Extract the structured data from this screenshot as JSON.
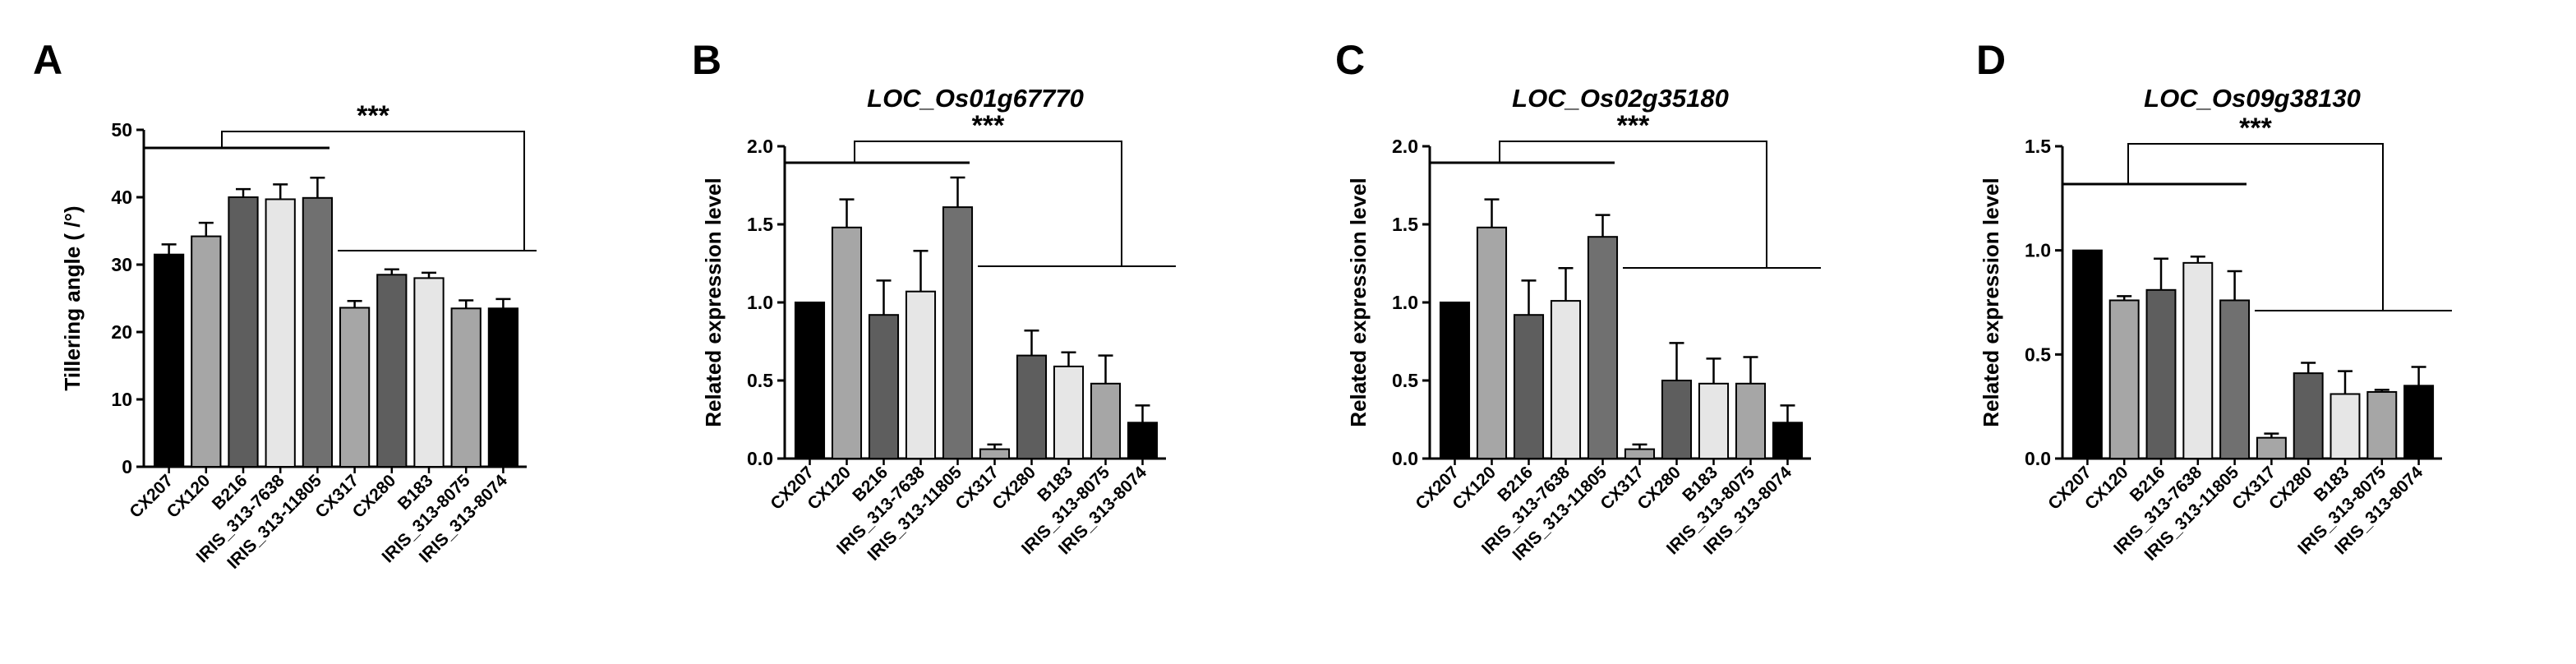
{
  "chart_data": [
    {
      "panel": "A",
      "type": "bar",
      "title": "",
      "xlabel": "",
      "ylabel": "Tillering angle ( /°)",
      "ylim": [
        0,
        50
      ],
      "yticks": [
        0,
        10,
        20,
        30,
        40,
        50
      ],
      "categories": [
        "CX207",
        "CX120",
        "B216",
        "IRIS_313-7638",
        "IRIS_313-11805",
        "CX317",
        "CX280",
        "B183",
        "IRIS_313-8075",
        "IRIS_313-8074"
      ],
      "values": [
        31.5,
        34.2,
        40.0,
        39.7,
        39.9,
        23.6,
        28.5,
        28.0,
        23.5,
        23.5
      ],
      "errors": [
        1.5,
        2.0,
        1.2,
        2.2,
        3.0,
        1.0,
        0.8,
        0.8,
        1.2,
        1.4
      ],
      "colors": [
        "#000000",
        "#a6a6a6",
        "#5e5e5e",
        "#e6e6e6",
        "#707070",
        "#a6a6a6",
        "#5e5e5e",
        "#e6e6e6",
        "#a6a6a6",
        "#000000"
      ],
      "significance": "***"
    },
    {
      "panel": "B",
      "type": "bar",
      "title": "LOC_Os01g67770",
      "xlabel": "",
      "ylabel": "Related expression level",
      "ylim": [
        0,
        2.0
      ],
      "yticks": [
        "0.0",
        "0.5",
        "1.0",
        "1.5",
        "2.0"
      ],
      "categories": [
        "CX207",
        "CX120",
        "B216",
        "IRIS_313-7638",
        "IRIS_313-11805",
        "CX317",
        "CX280",
        "B183",
        "IRIS_313-8075",
        "IRIS_313-8074"
      ],
      "values": [
        1.0,
        1.48,
        0.92,
        1.07,
        1.61,
        0.06,
        0.66,
        0.59,
        0.48,
        0.23
      ],
      "errors": [
        0.0,
        0.18,
        0.22,
        0.26,
        0.19,
        0.03,
        0.16,
        0.09,
        0.18,
        0.11
      ],
      "colors": [
        "#000000",
        "#a6a6a6",
        "#5e5e5e",
        "#e6e6e6",
        "#707070",
        "#a6a6a6",
        "#5e5e5e",
        "#e6e6e6",
        "#a6a6a6",
        "#000000"
      ],
      "significance": "***"
    },
    {
      "panel": "C",
      "type": "bar",
      "title": "LOC_Os02g35180",
      "xlabel": "",
      "ylabel": "Related expression level",
      "ylim": [
        0,
        2.0
      ],
      "yticks": [
        "0.0",
        "0.5",
        "1.0",
        "1.5",
        "2.0"
      ],
      "categories": [
        "CX207",
        "CX120",
        "B216",
        "IRIS_313-7638",
        "IRIS_313-11805",
        "CX317",
        "CX280",
        "B183",
        "IRIS_313-8075",
        "IRIS_313-8074"
      ],
      "values": [
        1.0,
        1.48,
        0.92,
        1.01,
        1.42,
        0.06,
        0.5,
        0.48,
        0.48,
        0.23
      ],
      "errors": [
        0.0,
        0.18,
        0.22,
        0.21,
        0.14,
        0.03,
        0.24,
        0.16,
        0.17,
        0.11
      ],
      "colors": [
        "#000000",
        "#a6a6a6",
        "#5e5e5e",
        "#e6e6e6",
        "#707070",
        "#a6a6a6",
        "#5e5e5e",
        "#e6e6e6",
        "#a6a6a6",
        "#000000"
      ],
      "significance": "***"
    },
    {
      "panel": "D",
      "type": "bar",
      "title": "LOC_Os09g38130",
      "xlabel": "",
      "ylabel": "Related expression level",
      "ylim": [
        0,
        1.5
      ],
      "yticks": [
        "0.0",
        "0.5",
        "1.0",
        "1.5"
      ],
      "categories": [
        "CX207",
        "CX120",
        "B216",
        "IRIS_313-7638",
        "IRIS_313-11805",
        "CX317",
        "CX280",
        "B183",
        "IRIS_313-8075",
        "IRIS_313-8074"
      ],
      "values": [
        1.0,
        0.76,
        0.81,
        0.94,
        0.76,
        0.1,
        0.41,
        0.31,
        0.32,
        0.35
      ],
      "errors": [
        0.0,
        0.02,
        0.15,
        0.03,
        0.14,
        0.02,
        0.05,
        0.11,
        0.01,
        0.09
      ],
      "colors": [
        "#000000",
        "#a6a6a6",
        "#5e5e5e",
        "#e6e6e6",
        "#707070",
        "#a6a6a6",
        "#5e5e5e",
        "#e6e6e6",
        "#a6a6a6",
        "#000000"
      ],
      "significance": "***"
    }
  ]
}
